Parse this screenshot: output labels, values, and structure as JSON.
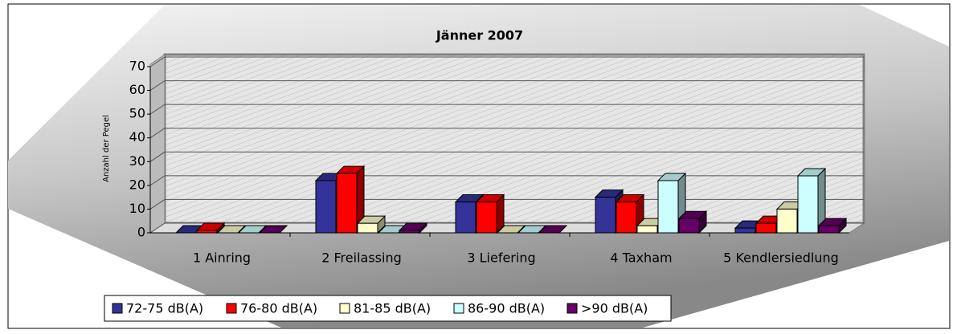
{
  "chart_data": {
    "type": "bar3d",
    "title": "Jänner 2007",
    "y_label": "Anzahl der Pegel",
    "categories": [
      "1 Ainring",
      "2 Freilassing",
      "3 Liefering",
      "4 Taxham",
      "5 Kendlersiedlung"
    ],
    "series": [
      {
        "name": "72-75 dB(A)",
        "color": "#333399",
        "values": [
          0,
          22,
          13,
          15,
          2
        ]
      },
      {
        "name": "76-80 dB(A)",
        "color": "#ff0000",
        "values": [
          1,
          25,
          13,
          13,
          4
        ]
      },
      {
        "name": "81-85 dB(A)",
        "color": "#ffffcc",
        "values": [
          0,
          4,
          0,
          3,
          10
        ]
      },
      {
        "name": "86-90 dB(A)",
        "color": "#ccffff",
        "values": [
          0,
          0,
          0,
          22,
          24
        ]
      },
      {
        "name": ">90 dB(A)",
        "color": "#660066",
        "values": [
          0,
          1,
          0,
          6,
          3
        ]
      }
    ],
    "ylim": [
      0,
      70
    ],
    "yticks": [
      0,
      10,
      20,
      30,
      40,
      50,
      60,
      70
    ],
    "grid": true,
    "legend": "bottom"
  }
}
